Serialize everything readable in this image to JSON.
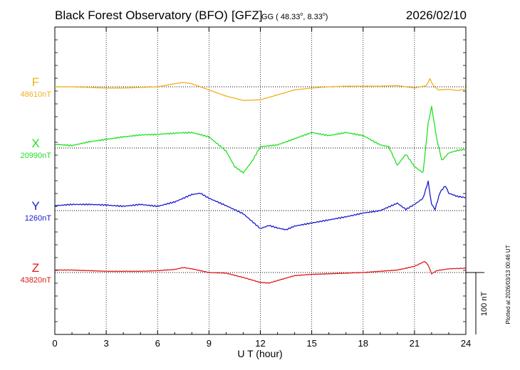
{
  "header": {
    "observatory": "Black Forest Observatory (BFO)",
    "institute": "[GFZ]",
    "coords_prefix": "GG ( 48.33",
    "coords_lat_unit": "o",
    "coords_mid": ",   8.33",
    "coords_lon_unit": "o",
    "coords_suffix": ")",
    "date": "2026/02/10"
  },
  "side_note": "Plotted at 2026/03/13 00:46 UT",
  "scale_bar": {
    "label": "100 nT",
    "value_nT": 100
  },
  "colors": {
    "F": "#f0b020",
    "X": "#22e022",
    "Y": "#1a1ad0",
    "Z": "#e01818",
    "frame": "#000000"
  },
  "chart_data": {
    "type": "line",
    "title": "Black Forest Observatory (BFO)",
    "xlabel": "U T (hour)",
    "ylabel": "",
    "xlim": [
      0,
      24
    ],
    "xticks": [
      0,
      3,
      6,
      9,
      12,
      15,
      18,
      21,
      24
    ],
    "xtick_labels": [
      "0",
      "3",
      "6",
      "9",
      "12",
      "15",
      "18",
      "21",
      "24"
    ],
    "scale_nT": 100,
    "grid": true,
    "series": [
      {
        "key": "F",
        "name": "F",
        "baseline_label": "48610nT",
        "baseline_nT": 48610,
        "x": [
          0,
          1,
          2,
          3,
          4,
          5,
          6,
          7,
          7.5,
          8,
          9,
          10,
          11,
          12,
          13,
          14,
          15,
          16,
          17,
          18,
          19,
          20,
          21,
          21.7,
          21.9,
          22.1,
          22.4,
          23,
          23.5,
          24
        ],
        "values": [
          48610,
          48610,
          48609,
          48608,
          48608,
          48609,
          48610,
          48615,
          48617,
          48615,
          48605,
          48595,
          48588,
          48589,
          48597,
          48605,
          48608,
          48610,
          48611,
          48611,
          48611,
          48612,
          48608,
          48612,
          48623,
          48612,
          48605,
          48606,
          48604,
          48606
        ]
      },
      {
        "key": "X",
        "name": "X",
        "baseline_label": "20990nT",
        "baseline_nT": 20990,
        "x": [
          0,
          1,
          2,
          3,
          4,
          5,
          6,
          7,
          8,
          9,
          10,
          10.5,
          11,
          11.5,
          12,
          13,
          14,
          15,
          16,
          17,
          18,
          19,
          19.5,
          20,
          20.5,
          21,
          21.5,
          21.8,
          22,
          22.3,
          22.6,
          23,
          23.5,
          24
        ],
        "values": [
          20996,
          20994,
          21000,
          21004,
          21008,
          21011,
          21012,
          21014,
          21015,
          21008,
          20985,
          20960,
          20950,
          20968,
          20992,
          20995,
          21005,
          21015,
          21010,
          21015,
          21010,
          20995,
          20992,
          20962,
          20980,
          20960,
          20950,
          21030,
          21057,
          21005,
          20970,
          20982,
          20986,
          20988
        ]
      },
      {
        "key": "Y",
        "name": "Y",
        "baseline_label": "1260nT",
        "baseline_nT": 1260,
        "x": [
          0,
          1,
          2,
          3,
          4,
          5,
          6,
          7,
          8,
          8.5,
          9,
          10,
          11,
          12,
          12.5,
          13,
          13.5,
          14,
          15,
          16,
          17,
          18,
          19,
          20,
          20.5,
          21,
          21.5,
          21.8,
          22,
          22.2,
          22.5,
          22.8,
          23,
          23.5,
          24
        ],
        "values": [
          1268,
          1270,
          1270,
          1269,
          1267,
          1270,
          1267,
          1274,
          1286,
          1288,
          1280,
          1268,
          1255,
          1231,
          1236,
          1232,
          1229,
          1235,
          1240,
          1245,
          1250,
          1256,
          1260,
          1272,
          1262,
          1270,
          1280,
          1307,
          1270,
          1262,
          1290,
          1300,
          1288,
          1283,
          1281
        ]
      },
      {
        "key": "Z",
        "name": "Z",
        "baseline_label": "43820nT",
        "baseline_nT": 43820,
        "x": [
          0,
          1,
          2,
          3,
          4,
          5,
          6,
          7,
          7.5,
          8,
          9,
          10,
          11,
          12,
          12.5,
          13,
          14,
          15,
          16,
          17,
          18,
          19,
          20,
          21,
          21.6,
          21.8,
          22,
          22.3,
          23,
          24
        ],
        "values": [
          43824,
          43824,
          43823,
          43822,
          43822,
          43822,
          43823,
          43825,
          43828,
          43826,
          43820,
          43819,
          43812,
          43804,
          43803,
          43807,
          43815,
          43817,
          43818,
          43819,
          43820,
          43822,
          43824,
          43830,
          43838,
          43832,
          43818,
          43823,
          43826,
          43827
        ]
      }
    ]
  }
}
